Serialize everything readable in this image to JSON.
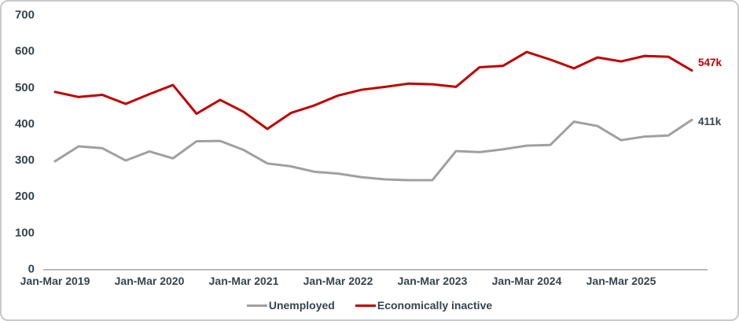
{
  "colors": {
    "tick_text": "#36444e",
    "axis_line": "#a6a6a6",
    "card_border": "#c9c9c9",
    "background": "#ffffff"
  },
  "chart_data": {
    "type": "line",
    "title": "",
    "xlabel": "",
    "ylabel": "",
    "ylim": [
      0,
      700
    ],
    "grid": false,
    "legend_position": "bottom",
    "y_ticks": [
      700,
      600,
      500,
      400,
      300,
      200,
      100,
      0
    ],
    "x_tick_labels": [
      "Jan-Mar 2019",
      "Jan-Mar 2020",
      "Jan-Mar 2021",
      "Jan-Mar 2022",
      "Jan-Mar 2023",
      "Jan-Mar 2024",
      "Jan-Mar 2025"
    ],
    "x_tick_point_indices": [
      0,
      4,
      8,
      12,
      16,
      20,
      24
    ],
    "points_per_year": 4,
    "series": [
      {
        "name": "Unemployed",
        "color": "#a0a0a0",
        "end_label": "411k",
        "end_label_color": "#36444e",
        "end_label_dy": 2,
        "values": [
          297,
          338,
          333,
          299,
          324,
          305,
          352,
          353,
          328,
          291,
          283,
          268,
          263,
          253,
          247,
          245,
          245,
          325,
          322,
          330,
          340,
          342,
          406,
          394,
          355,
          365,
          368,
          411
        ]
      },
      {
        "name": "Economically inactive",
        "color": "#c00000",
        "end_label": "547k",
        "end_label_color": "#c00000",
        "end_label_dy": -10,
        "values": [
          488,
          474,
          480,
          455,
          482,
          507,
          428,
          466,
          433,
          386,
          430,
          451,
          478,
          494,
          502,
          511,
          509,
          502,
          556,
          560,
          598,
          577,
          553,
          583,
          572,
          587,
          585,
          547
        ]
      }
    ]
  }
}
